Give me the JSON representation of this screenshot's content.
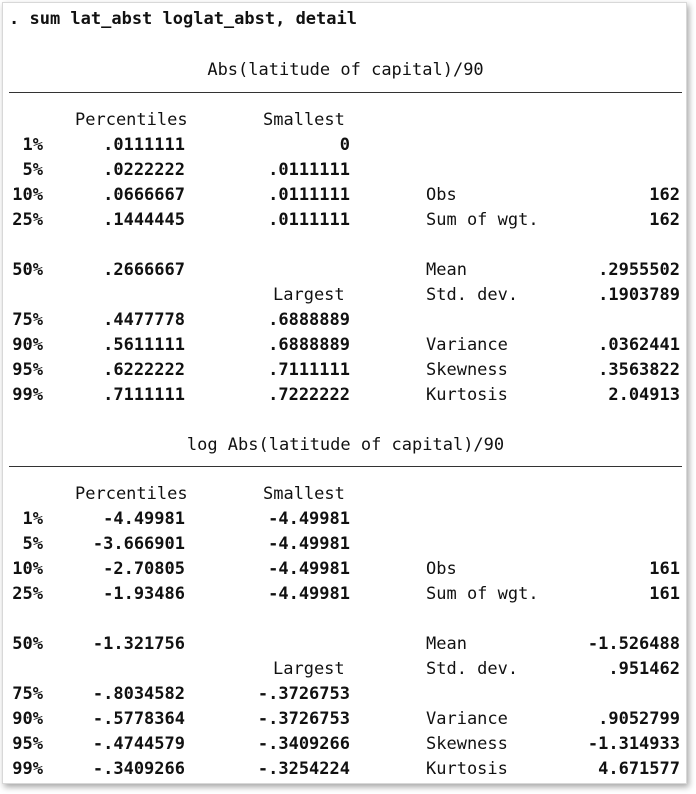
{
  "command": ". sum lat_abst loglat_abst, detail",
  "headers": {
    "percentiles": "Percentiles",
    "smallest": "Smallest",
    "largest": "Largest"
  },
  "stat_labels": {
    "obs": "Obs",
    "sum_wgt": "Sum of wgt.",
    "mean": "Mean",
    "sd": "Std. dev.",
    "variance": "Variance",
    "skewness": "Skewness",
    "kurtosis": "Kurtosis"
  },
  "tables": [
    {
      "title": "Abs(latitude of capital)/90",
      "pct": [
        "1%",
        "5%",
        "10%",
        "25%",
        "50%",
        "75%",
        "90%",
        "95%",
        "99%"
      ],
      "pct_values": [
        ".0111111",
        ".0222222",
        ".0666667",
        ".1444445",
        ".2666667",
        ".4477778",
        ".5611111",
        ".6222222",
        ".7111111"
      ],
      "smallest": [
        "0",
        ".0111111",
        ".0111111",
        ".0111111"
      ],
      "largest": [
        ".6888889",
        ".6888889",
        ".7111111",
        ".7222222"
      ],
      "obs": "162",
      "sum_wgt": "162",
      "mean": ".2955502",
      "sd": ".1903789",
      "variance": ".0362441",
      "skewness": ".3563822",
      "kurtosis": "2.04913"
    },
    {
      "title": "log Abs(latitude of capital)/90",
      "pct": [
        "1%",
        "5%",
        "10%",
        "25%",
        "50%",
        "75%",
        "90%",
        "95%",
        "99%"
      ],
      "pct_values": [
        "-4.49981",
        "-3.666901",
        "-2.70805",
        "-1.93486",
        "-1.321756",
        "-.8034582",
        "-.5778364",
        "-.4744579",
        "-.3409266"
      ],
      "smallest": [
        "-4.49981",
        "-4.49981",
        "-4.49981",
        "-4.49981"
      ],
      "largest": [
        "-.3726753",
        "-.3726753",
        "-.3409266",
        "-.3254224"
      ],
      "obs": "161",
      "sum_wgt": "161",
      "mean": "-1.526488",
      "sd": ".951462",
      "variance": ".9052799",
      "skewness": "-1.314933",
      "kurtosis": "4.671577"
    }
  ]
}
